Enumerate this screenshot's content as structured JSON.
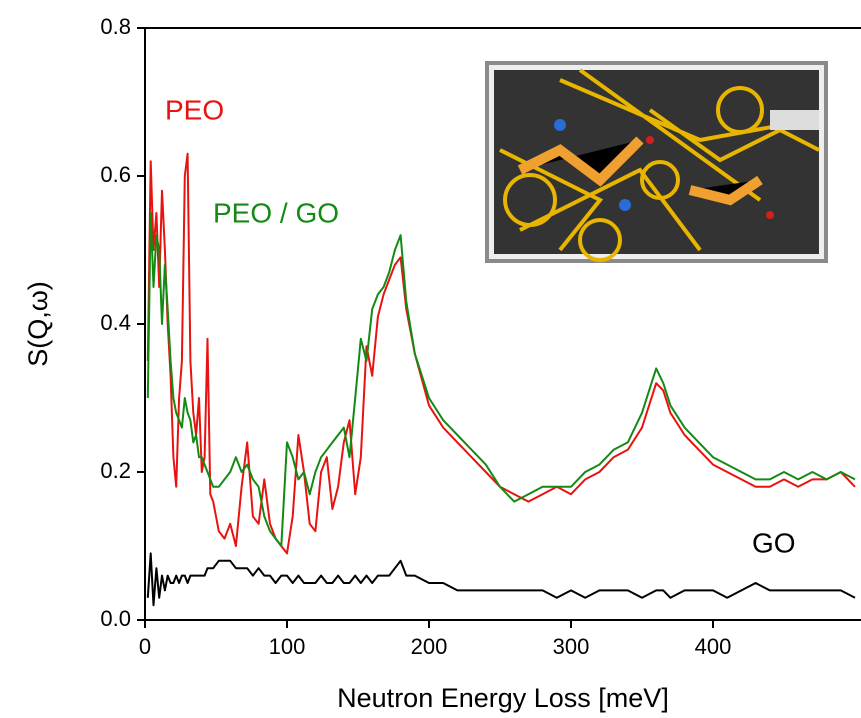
{
  "chart_data": {
    "type": "line",
    "x_label": "Neutron Energy Loss [meV]",
    "y_label": "S(Q,ω)",
    "xlim": [
      0,
      504
    ],
    "ylim": [
      0,
      0.8
    ],
    "xticks": [
      0,
      100,
      200,
      300,
      400
    ],
    "yticks": [
      {
        "value": 0,
        "label": "0.0"
      },
      0.2,
      0.4,
      0.6,
      0.8
    ],
    "x": [
      2,
      4,
      6,
      8,
      10,
      12,
      14,
      16,
      18,
      20,
      22,
      24,
      26,
      28,
      30,
      32,
      34,
      36,
      38,
      40,
      42,
      44,
      46,
      48,
      52,
      56,
      60,
      64,
      68,
      72,
      76,
      80,
      84,
      88,
      92,
      96,
      100,
      104,
      108,
      112,
      116,
      120,
      124,
      128,
      132,
      136,
      140,
      144,
      148,
      152,
      156,
      160,
      164,
      168,
      172,
      176,
      180,
      184,
      190,
      200,
      210,
      220,
      230,
      240,
      250,
      260,
      270,
      280,
      290,
      300,
      310,
      320,
      330,
      340,
      350,
      360,
      365,
      370,
      380,
      390,
      400,
      410,
      420,
      430,
      440,
      450,
      460,
      470,
      480,
      490,
      500
    ],
    "series": [
      {
        "name": "PEO",
        "color": "#e8130f",
        "values": [
          0.35,
          0.62,
          0.5,
          0.55,
          0.45,
          0.58,
          0.5,
          0.4,
          0.33,
          0.22,
          0.18,
          0.3,
          0.35,
          0.6,
          0.63,
          0.35,
          0.28,
          0.25,
          0.3,
          0.2,
          0.22,
          0.38,
          0.17,
          0.16,
          0.12,
          0.11,
          0.13,
          0.1,
          0.18,
          0.24,
          0.14,
          0.13,
          0.19,
          0.13,
          0.11,
          0.1,
          0.09,
          0.14,
          0.25,
          0.2,
          0.13,
          0.12,
          0.2,
          0.22,
          0.15,
          0.18,
          0.24,
          0.27,
          0.17,
          0.22,
          0.37,
          0.33,
          0.41,
          0.44,
          0.46,
          0.48,
          0.49,
          0.42,
          0.36,
          0.29,
          0.26,
          0.24,
          0.22,
          0.2,
          0.18,
          0.17,
          0.16,
          0.17,
          0.18,
          0.17,
          0.19,
          0.2,
          0.22,
          0.23,
          0.26,
          0.32,
          0.31,
          0.28,
          0.25,
          0.23,
          0.21,
          0.2,
          0.19,
          0.18,
          0.18,
          0.19,
          0.18,
          0.19,
          0.19,
          0.2,
          0.18
        ]
      },
      {
        "name": "PEO / GO",
        "color": "#148a14",
        "values": [
          0.3,
          0.55,
          0.45,
          0.52,
          0.5,
          0.4,
          0.48,
          0.42,
          0.35,
          0.3,
          0.28,
          0.27,
          0.26,
          0.3,
          0.28,
          0.27,
          0.24,
          0.25,
          0.22,
          0.22,
          0.21,
          0.2,
          0.19,
          0.18,
          0.18,
          0.19,
          0.2,
          0.22,
          0.2,
          0.21,
          0.19,
          0.18,
          0.14,
          0.12,
          0.11,
          0.1,
          0.24,
          0.22,
          0.19,
          0.2,
          0.17,
          0.2,
          0.22,
          0.23,
          0.24,
          0.25,
          0.26,
          0.22,
          0.3,
          0.38,
          0.35,
          0.42,
          0.44,
          0.45,
          0.47,
          0.5,
          0.52,
          0.43,
          0.36,
          0.3,
          0.27,
          0.25,
          0.23,
          0.21,
          0.18,
          0.16,
          0.17,
          0.18,
          0.18,
          0.18,
          0.2,
          0.21,
          0.23,
          0.24,
          0.28,
          0.34,
          0.32,
          0.29,
          0.26,
          0.24,
          0.22,
          0.21,
          0.2,
          0.19,
          0.19,
          0.2,
          0.19,
          0.2,
          0.19,
          0.2,
          0.19
        ]
      },
      {
        "name": "GO",
        "color": "#000000",
        "values": [
          0.03,
          0.09,
          0.02,
          0.07,
          0.03,
          0.06,
          0.04,
          0.06,
          0.05,
          0.05,
          0.06,
          0.05,
          0.06,
          0.06,
          0.05,
          0.06,
          0.06,
          0.06,
          0.06,
          0.06,
          0.06,
          0.07,
          0.07,
          0.07,
          0.08,
          0.08,
          0.08,
          0.07,
          0.07,
          0.07,
          0.06,
          0.07,
          0.06,
          0.06,
          0.05,
          0.06,
          0.06,
          0.05,
          0.06,
          0.05,
          0.05,
          0.05,
          0.06,
          0.05,
          0.05,
          0.06,
          0.05,
          0.05,
          0.06,
          0.05,
          0.06,
          0.05,
          0.06,
          0.06,
          0.06,
          0.07,
          0.08,
          0.06,
          0.06,
          0.05,
          0.05,
          0.04,
          0.04,
          0.04,
          0.04,
          0.04,
          0.04,
          0.04,
          0.03,
          0.04,
          0.03,
          0.04,
          0.04,
          0.04,
          0.03,
          0.04,
          0.04,
          0.03,
          0.04,
          0.04,
          0.04,
          0.03,
          0.04,
          0.05,
          0.04,
          0.04,
          0.04,
          0.04,
          0.04,
          0.04,
          0.03
        ]
      }
    ]
  }
}
